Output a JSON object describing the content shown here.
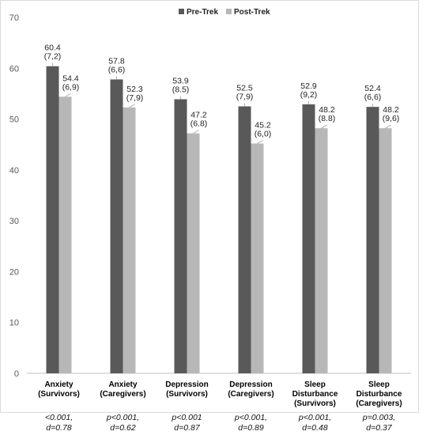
{
  "chart_data": {
    "type": "bar",
    "title": "",
    "xlabel": "",
    "ylabel": "",
    "ylim": [
      0,
      70
    ],
    "yticks": [
      0,
      10,
      20,
      30,
      40,
      50,
      60,
      70
    ],
    "grid": false,
    "legend_position": "top-right",
    "categories": [
      [
        "Anxiety",
        "(Survivors)"
      ],
      [
        "Anxiety",
        "(Caregivers)"
      ],
      [
        "Depression",
        "(Survivors)"
      ],
      [
        "Depression",
        "(Caregivers)"
      ],
      [
        "Sleep",
        "Disturbance",
        "(Survivors)"
      ],
      [
        "Sleep",
        "Disturbance",
        "(Caregivers)"
      ]
    ],
    "series": [
      {
        "name": "Pre-Trek",
        "color": "#595959",
        "values": [
          60.4,
          57.8,
          53.9,
          52.5,
          52.9,
          52.4
        ],
        "labels": [
          [
            "60.4",
            "(7,2)"
          ],
          [
            "57.8",
            "(6,6)"
          ],
          [
            "53.9",
            "(8.5)"
          ],
          [
            "52.5",
            "(7,9)"
          ],
          [
            "52.9",
            "(9,2)"
          ],
          [
            "52.4",
            "(6,6)"
          ]
        ]
      },
      {
        "name": "Post-Trek",
        "color": "#b7b7b7",
        "values": [
          54.4,
          52.3,
          47.2,
          45.2,
          48.2,
          48.2
        ],
        "labels": [
          [
            "54.4",
            "(6,9)"
          ],
          [
            "52.3",
            "(7,9)"
          ],
          [
            "47.2",
            "(6.8)"
          ],
          [
            "45.2",
            "(6,0)"
          ],
          [
            "48.2",
            "(8.8)"
          ],
          [
            "48.2",
            "(9,6)"
          ]
        ]
      }
    ],
    "stats": [
      [
        "<0.001,",
        "d=0.78"
      ],
      [
        "p<0.001,",
        "d=0.62"
      ],
      [
        "p<0.001",
        "d=0.87"
      ],
      [
        "p<0.001,",
        "d=0.89"
      ],
      [
        "p<0.001,",
        "d=0.48"
      ],
      [
        "p=0.003,",
        "d=0.37"
      ]
    ]
  }
}
